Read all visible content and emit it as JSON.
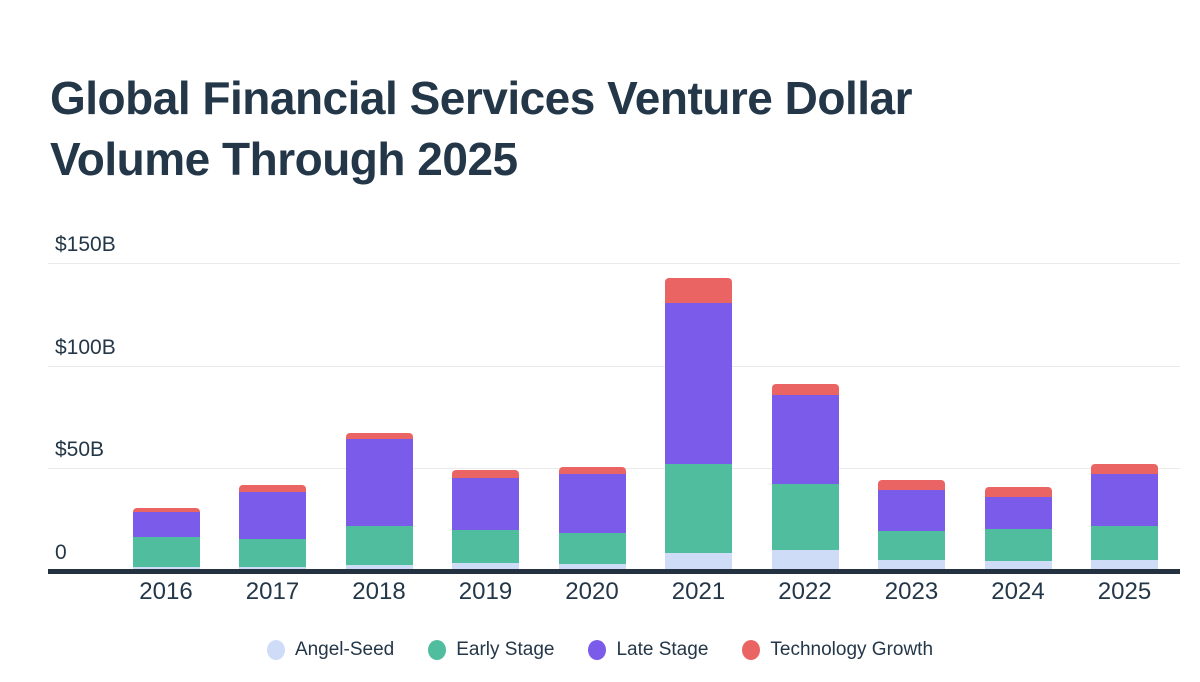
{
  "title": {
    "line1": "Global Financial Services Venture Dollar",
    "line2": "Volume Through 2025",
    "full": "Global Financial Services Venture Dollar Volume Through 2025"
  },
  "colors": {
    "background": "#ffffff",
    "title_text": "#233748",
    "axis_text": "#243748",
    "axis_line": "#243140",
    "gridline": "#eaeaea",
    "angel_seed": "#cedcf8",
    "early_stage": "#51bd9f",
    "late_stage": "#7b5bea",
    "technology_growth": "#eb6464"
  },
  "chart_data": {
    "type": "bar",
    "stacked": true,
    "title": "Global Financial Services Venture Dollar Volume Through 2025",
    "xlabel": "",
    "ylabel": "",
    "units": "billions USD",
    "grid": true,
    "legend_position": "bottom",
    "ylim": [
      0,
      150
    ],
    "yticks": [
      {
        "value": 0,
        "label": "0"
      },
      {
        "value": 50,
        "label": "$50B"
      },
      {
        "value": 100,
        "label": "$100B"
      },
      {
        "value": 150,
        "label": "$150B"
      }
    ],
    "categories": [
      "2016",
      "2017",
      "2018",
      "2019",
      "2020",
      "2021",
      "2022",
      "2023",
      "2024",
      "2025"
    ],
    "series": [
      {
        "name": "Angel-Seed",
        "slug": "angel-seed",
        "color": "#cedcf8",
        "values": [
          2,
          2,
          3,
          4,
          3.5,
          9,
          10,
          5.5,
          5,
          5.5
        ]
      },
      {
        "name": "Early Stage",
        "slug": "early-stage",
        "color": "#51bd9f",
        "values": [
          14.5,
          13.5,
          19,
          16,
          15,
          43,
          32.5,
          14,
          15.5,
          16.5
        ]
      },
      {
        "name": "Late Stage",
        "slug": "late-stage",
        "color": "#7b5bea",
        "values": [
          12,
          23,
          42.5,
          25.5,
          28.5,
          78.5,
          43,
          20,
          15.5,
          25
        ]
      },
      {
        "name": "Technology Growth",
        "slug": "technology-growth",
        "color": "#eb6464",
        "values": [
          2,
          3.5,
          2.5,
          3.5,
          3.5,
          12,
          5.5,
          5,
          5,
          5
        ]
      }
    ],
    "totals": [
      30.5,
      42,
      67,
      49,
      50.5,
      142.5,
      91,
      44.5,
      41,
      52
    ]
  }
}
